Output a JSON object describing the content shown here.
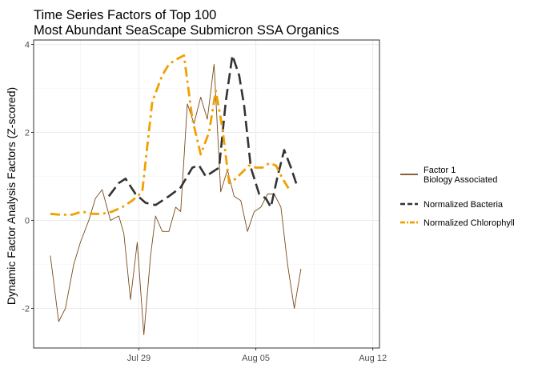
{
  "chart_data": {
    "type": "line",
    "title_lines": [
      "Time Series Factors of Top 100",
      "Most Abundant SeaScape Submicron SSA Organics"
    ],
    "xlabel": "",
    "ylabel": "Dynamic Factor Analysis Factors (Z-scored)",
    "x_ticks": [
      {
        "label": "Jul 29",
        "day": 29.0
      },
      {
        "label": "Aug 05",
        "day": 36.0
      },
      {
        "label": "Aug 12",
        "day": 43.0
      }
    ],
    "xlim": [
      "Jul 24",
      "Aug 12"
    ],
    "y_ticks": [
      -2,
      0,
      2,
      4
    ],
    "ylim": [
      -2.9,
      4.1
    ],
    "grid": true,
    "legend_position": "right",
    "series": [
      {
        "name": "Factor 1\nBiology Associated",
        "legend_lines": [
          "Factor 1",
          "Biology Associated"
        ],
        "color": "#7a4a1a",
        "style": "solid",
        "x": [
          23.7,
          24.2,
          24.6,
          25.1,
          25.5,
          26.0,
          26.4,
          26.8,
          27.3,
          27.8,
          28.1,
          28.5,
          28.9,
          29.3,
          29.7,
          30.0,
          30.4,
          30.8,
          31.2,
          31.5,
          31.9,
          32.3,
          32.7,
          33.1,
          33.5,
          33.9,
          34.3,
          34.7,
          35.1,
          35.5,
          35.9,
          36.3,
          36.7,
          37.1,
          37.5,
          37.9,
          38.3,
          38.7,
          39.1,
          39.5,
          39.9,
          40.3,
          40.8,
          41.2,
          41.6,
          42.0
        ],
        "y": [
          -0.8,
          -2.3,
          -2.0,
          -1.0,
          -0.5,
          0.0,
          0.5,
          0.7,
          0.0,
          0.1,
          -0.3,
          -1.8,
          -0.5,
          -2.6,
          -0.8,
          0.1,
          -0.25,
          -0.25,
          0.3,
          0.2,
          2.65,
          2.2,
          2.8,
          2.3,
          3.55,
          0.65,
          1.15,
          0.55,
          0.45,
          -0.25,
          0.2,
          0.3,
          0.6,
          0.6,
          0.3,
          -1.0,
          -2.0,
          -1.1,
          null,
          null,
          null,
          null,
          null,
          null,
          null,
          null
        ],
        "y_note": ""
      },
      {
        "name": "Normalized Bacteria",
        "color": "#333333",
        "style": "longdash",
        "x": [
          27.2,
          27.8,
          28.2,
          28.8,
          29.4,
          30.0,
          30.8,
          31.5,
          32.2,
          32.6,
          33.0,
          33.4,
          33.8,
          34.2,
          34.6,
          35.0,
          35.3,
          35.7,
          36.2,
          36.6,
          36.9,
          37.3,
          37.7,
          38.1,
          38.5,
          38.9,
          39.3,
          39.7,
          40.0,
          40.3
        ],
        "y": [
          0.55,
          0.85,
          0.95,
          0.6,
          0.4,
          0.35,
          0.55,
          0.75,
          1.2,
          1.25,
          1.0,
          1.1,
          1.2,
          2.7,
          3.75,
          3.3,
          2.6,
          1.2,
          0.6,
          0.5,
          0.3,
          1.0,
          1.6,
          1.2,
          0.75,
          null,
          null,
          null,
          null,
          null
        ]
      },
      {
        "name": "Normalized Chlorophyll",
        "color": "#f0a000",
        "style": "dashdot",
        "x": [
          23.7,
          24.3,
          25.0,
          25.6,
          26.2,
          26.8,
          27.4,
          28.0,
          28.6,
          29.2,
          29.8,
          30.4,
          30.8,
          31.2,
          31.7,
          32.2,
          32.7,
          33.2,
          33.6,
          34.0,
          34.4,
          34.8,
          35.2,
          35.6,
          36.0,
          36.4,
          36.8,
          37.2,
          37.6,
          38.0,
          38.4,
          38.8,
          39.2,
          39.6,
          40.0,
          40.4
        ],
        "y": [
          0.15,
          0.13,
          0.13,
          0.2,
          0.15,
          0.15,
          0.2,
          0.3,
          0.45,
          0.65,
          2.7,
          3.3,
          3.55,
          3.65,
          3.75,
          2.3,
          1.5,
          2.0,
          2.95,
          2.1,
          0.85,
          0.95,
          1.1,
          1.25,
          1.2,
          1.2,
          1.3,
          1.25,
          0.95,
          0.7,
          null,
          null,
          null,
          null,
          null,
          null
        ]
      }
    ]
  }
}
